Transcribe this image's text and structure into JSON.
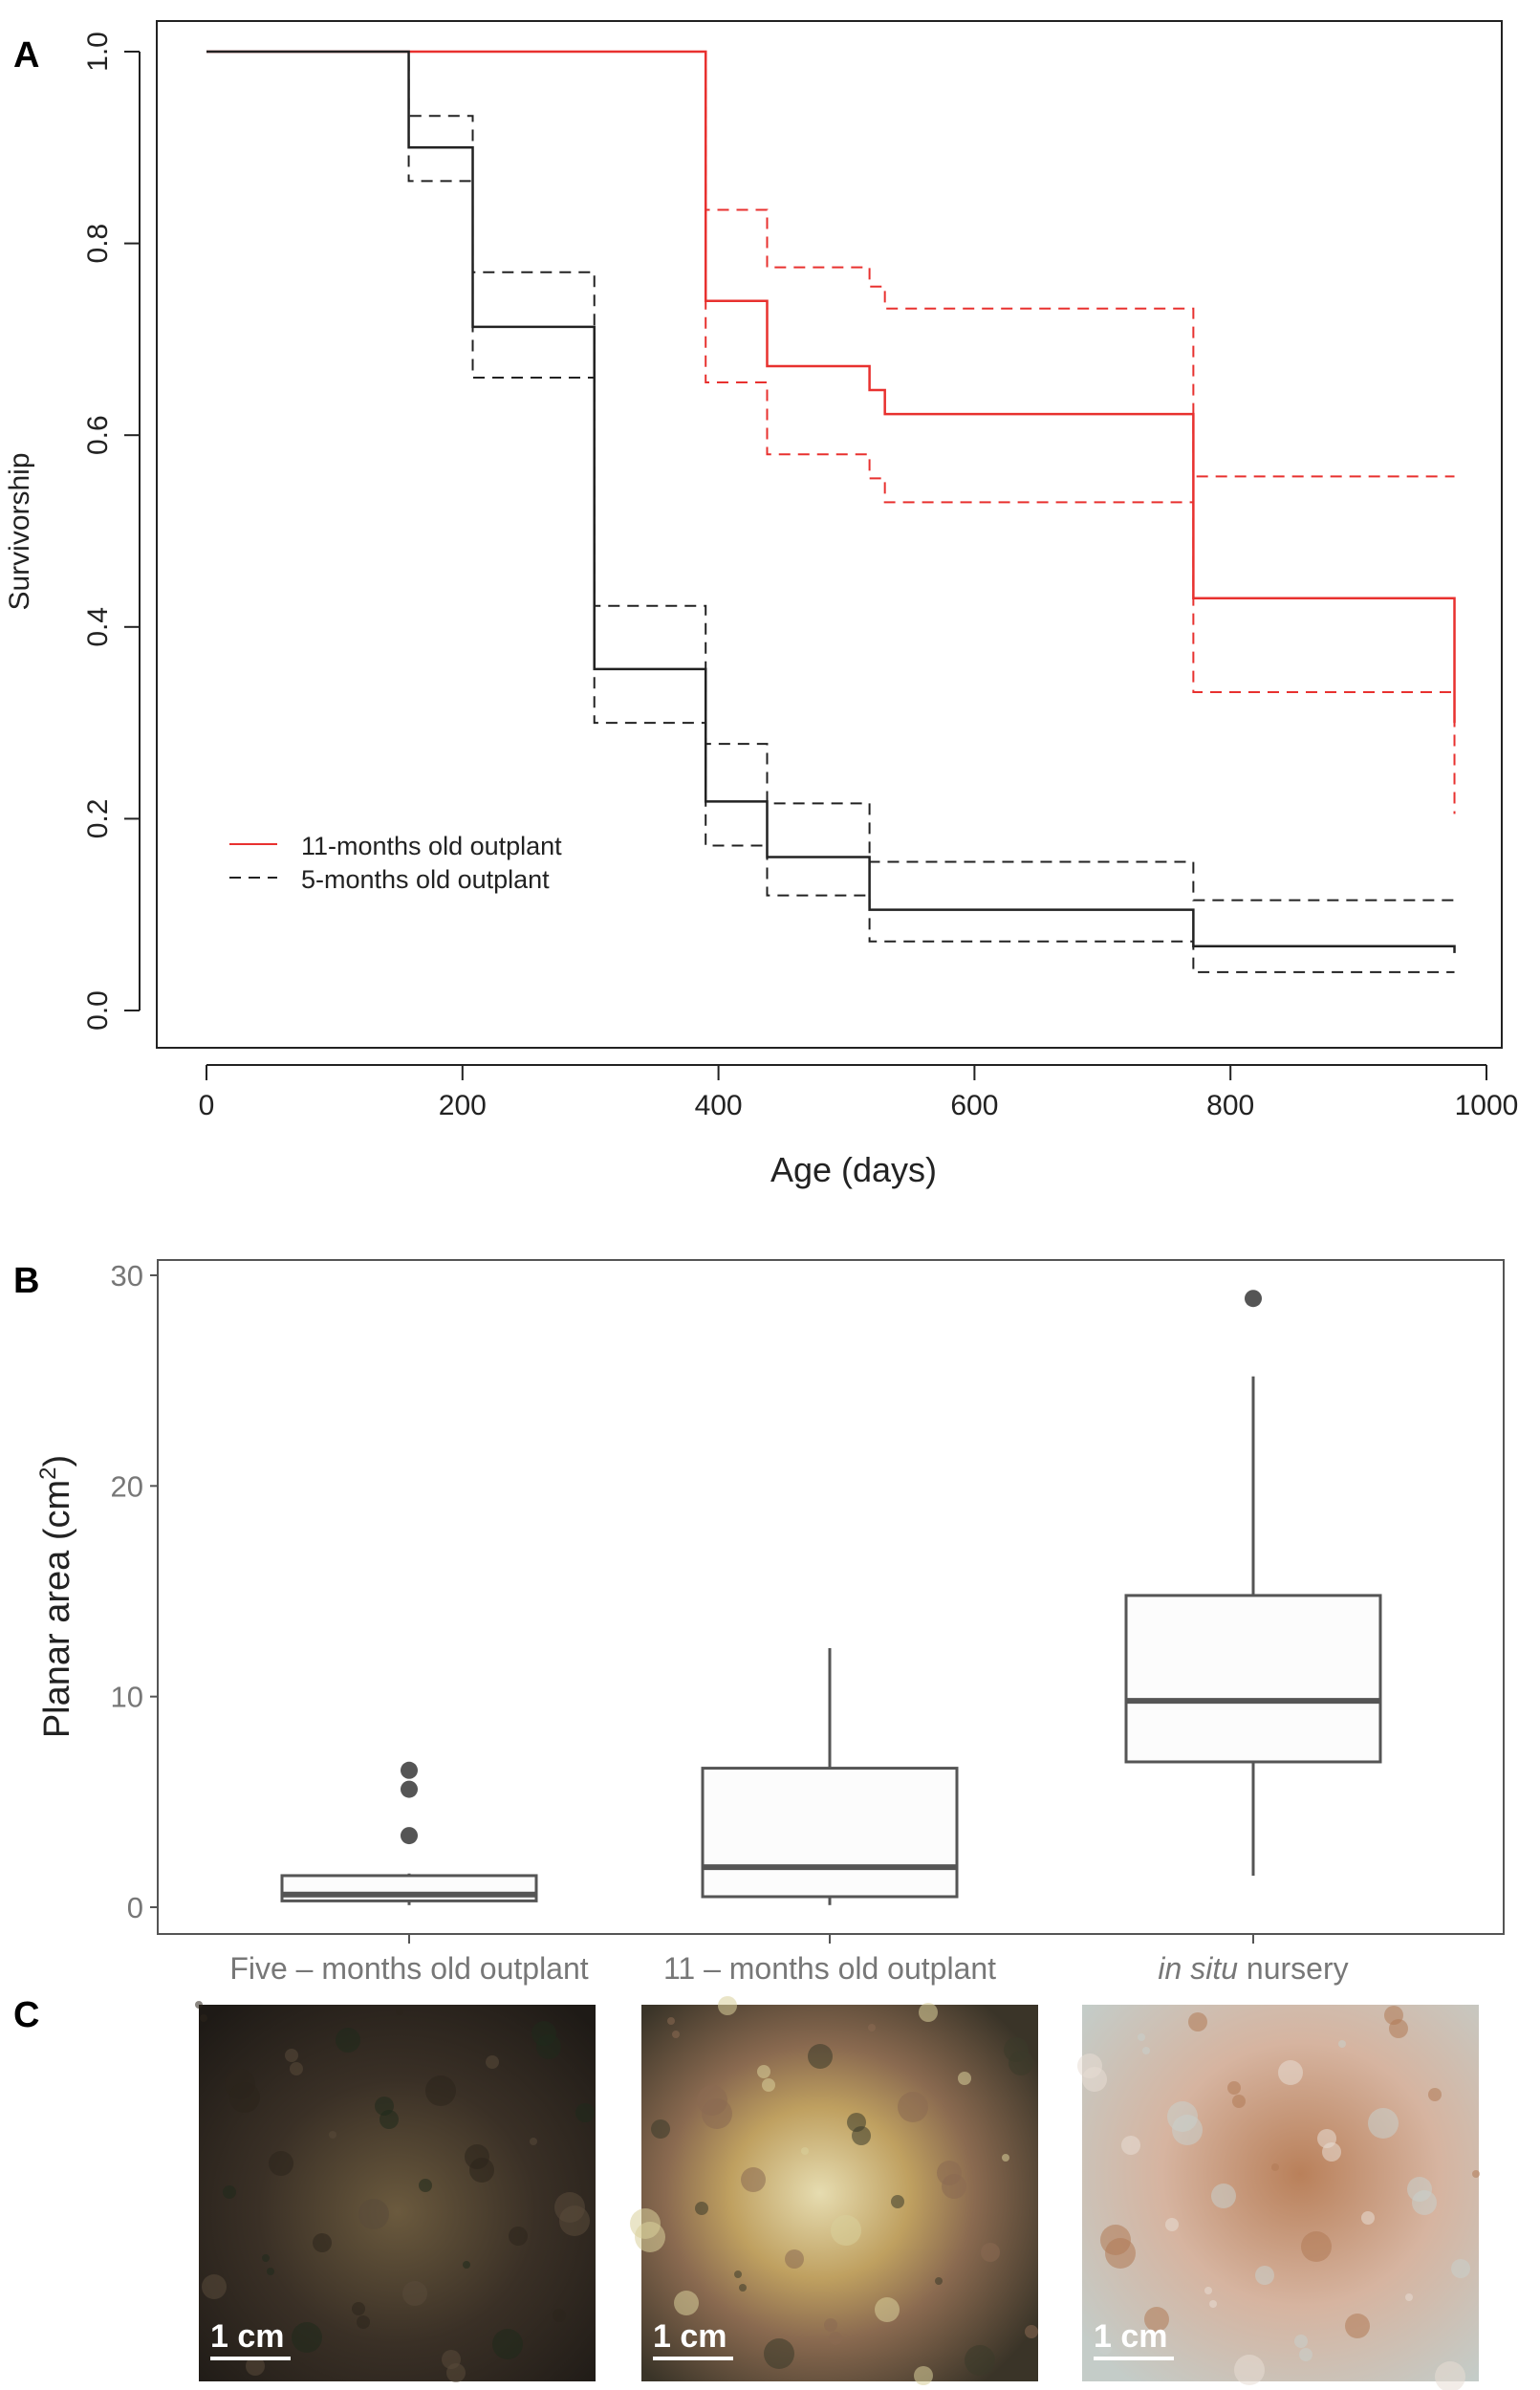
{
  "panels": {
    "a": "A",
    "b": "B",
    "c": "C"
  },
  "chart_data": [
    {
      "type": "line",
      "subtype": "kaplan-meier step",
      "xlabel": "Age (days)",
      "ylabel": "Survivorship",
      "xlim": [
        0,
        1000
      ],
      "ylim": [
        0,
        1
      ],
      "xticks": [
        0,
        200,
        400,
        600,
        800,
        1000
      ],
      "yticks": [
        "0.0",
        "0.2",
        "0.4",
        "0.6",
        "0.8",
        "1.0"
      ],
      "legend_position": "bottom-left",
      "series": [
        {
          "name": "11-months old outplant",
          "color": "#e8312f",
          "times": [
            0,
            390,
            438,
            518,
            530,
            771,
            975
          ],
          "survival": [
            1.0,
            0.74,
            0.672,
            0.647,
            0.622,
            0.43,
            0.3
          ],
          "upper": [
            1.0,
            0.835,
            0.775,
            0.755,
            0.732,
            0.557,
            0.557
          ],
          "lower": [
            1.0,
            0.655,
            0.58,
            0.555,
            0.53,
            0.332,
            0.205
          ]
        },
        {
          "name": "5-months old outplant",
          "color": "#222222",
          "times": [
            0,
            158,
            208,
            303,
            390,
            438,
            518,
            771,
            975
          ],
          "survival": [
            1.0,
            0.9,
            0.713,
            0.356,
            0.218,
            0.16,
            0.105,
            0.067,
            0.06
          ],
          "upper": [
            1.0,
            0.933,
            0.77,
            0.422,
            0.278,
            0.216,
            0.155,
            0.115,
            0.11
          ],
          "lower": [
            1.0,
            0.865,
            0.66,
            0.3,
            0.172,
            0.12,
            0.072,
            0.04,
            0.04
          ]
        }
      ]
    },
    {
      "type": "box",
      "ylabel": "Planar area (cm",
      "ylabel_sup": "2",
      "ylabel_close": ")",
      "ylim": [
        -1,
        30
      ],
      "yticks": [
        0,
        10,
        20,
        30
      ],
      "categories": [
        {
          "label_italic": "",
          "label": "Five – months old outplant",
          "min": 0.1,
          "q1": 0.3,
          "median": 0.6,
          "q3": 1.5,
          "max": 1.6,
          "outliers": [
            3.4,
            5.6,
            6.5
          ]
        },
        {
          "label_italic": "",
          "label": "11 – months old outplant",
          "min": 0.1,
          "q1": 0.5,
          "median": 1.9,
          "q3": 6.6,
          "max": 12.3,
          "outliers": []
        },
        {
          "label_italic": "in situ",
          "label": " nursery",
          "min": 1.5,
          "q1": 6.9,
          "median": 9.8,
          "q3": 14.8,
          "max": 25.2,
          "outliers": [
            28.9
          ]
        }
      ]
    }
  ],
  "photos": [
    {
      "scale_label": "1 cm",
      "palette": [
        "#2c241c",
        "#5a4a3a",
        "#1f2a1c"
      ]
    },
    {
      "scale_label": "1 cm",
      "palette": [
        "#8a6a52",
        "#d9cf9a",
        "#3b3a2a"
      ]
    },
    {
      "scale_label": "1 cm",
      "palette": [
        "#c9d0cc",
        "#b07a55",
        "#e8dcd4"
      ]
    }
  ]
}
